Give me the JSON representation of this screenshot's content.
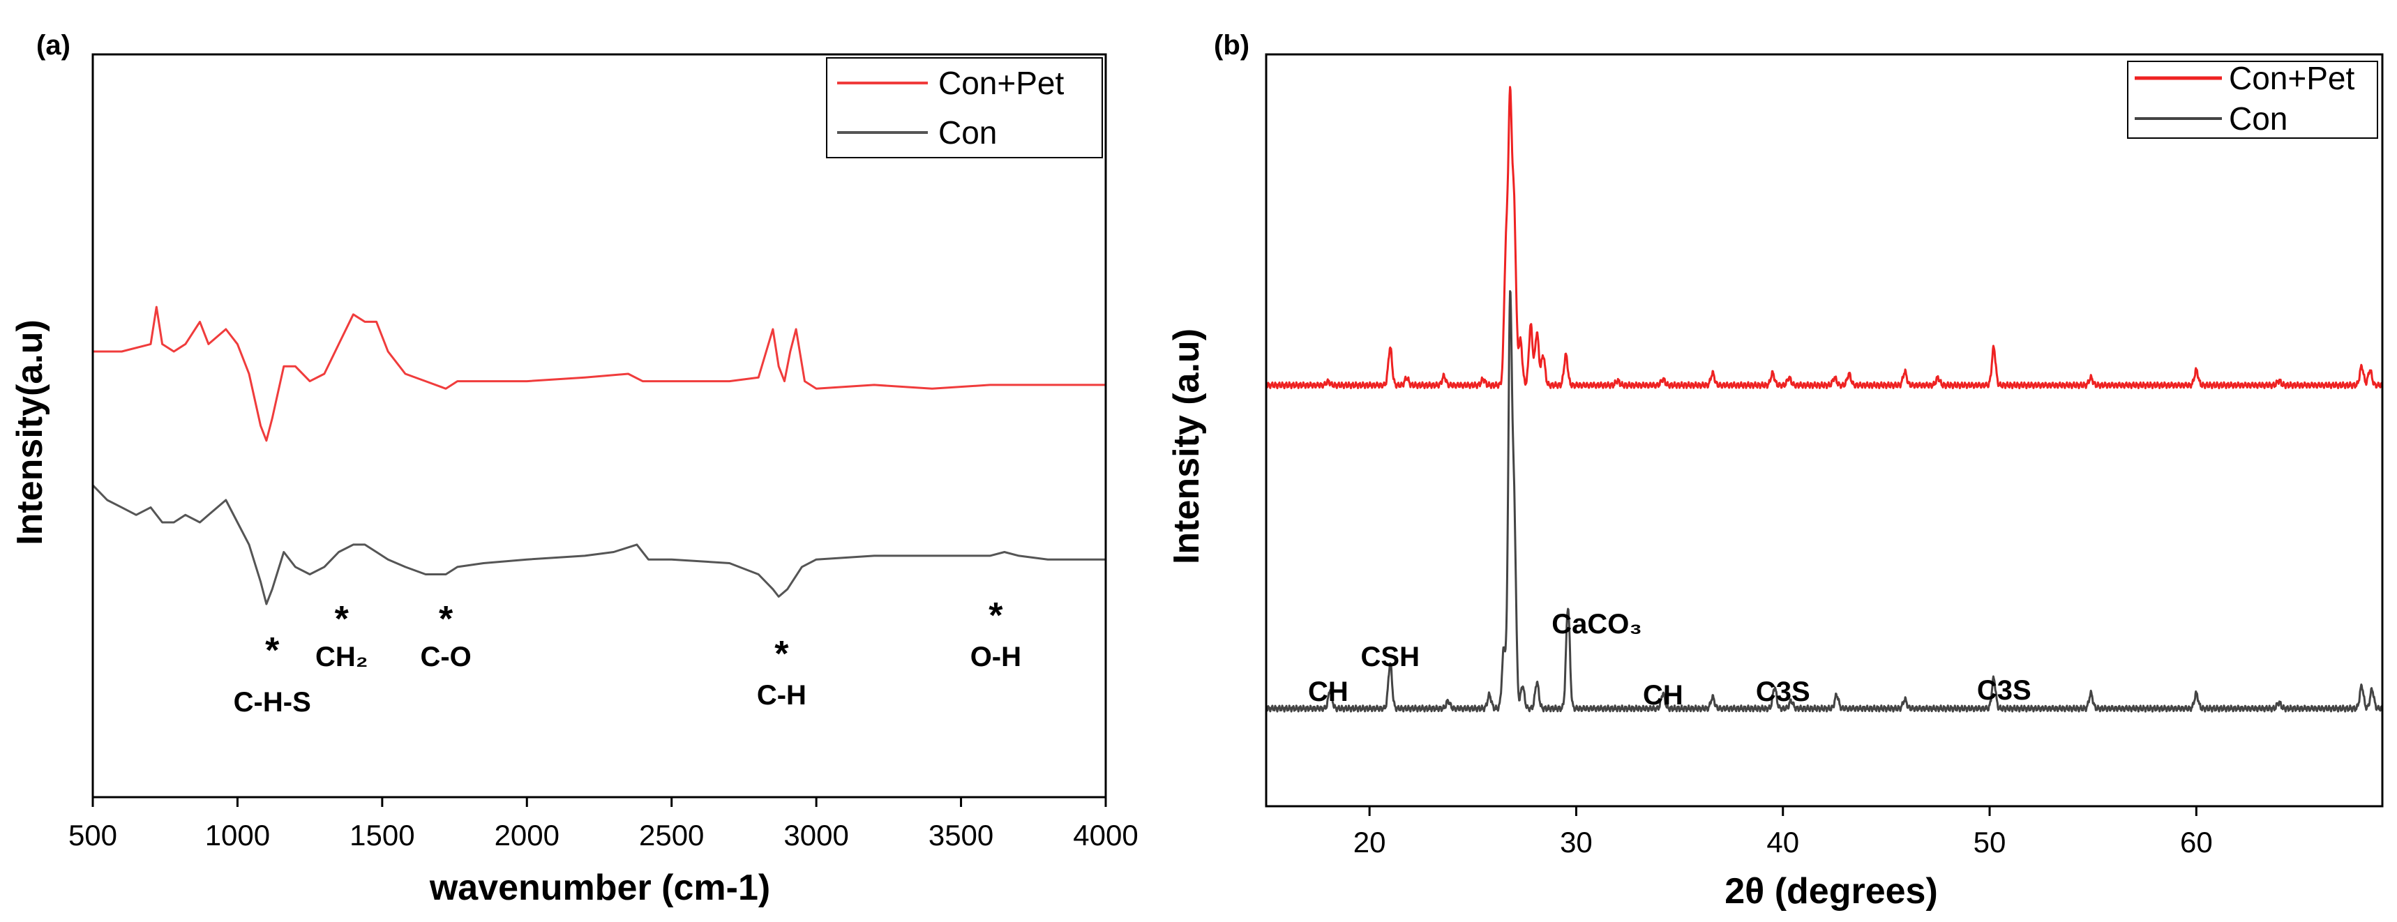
{
  "chart_data": [
    {
      "type": "line",
      "panel_label": "(a)",
      "title": "",
      "xlabel": "wavenumber (cm-1)",
      "ylabel": "Intensity(a.u)",
      "xlim": [
        500,
        4000
      ],
      "xticks": [
        500,
        1000,
        1500,
        2000,
        2500,
        3000,
        3500,
        4000
      ],
      "y_ticks_shown": false,
      "legend": "top-right",
      "colors": {
        "Con+Pet": "#f03c3c",
        "Con": "#555555"
      },
      "series": [
        {
          "name": "Con+Pet",
          "x": [
            500,
            600,
            700,
            720,
            740,
            780,
            820,
            870,
            900,
            960,
            1000,
            1040,
            1080,
            1100,
            1120,
            1160,
            1200,
            1250,
            1300,
            1350,
            1400,
            1440,
            1480,
            1520,
            1580,
            1650,
            1720,
            1760,
            1850,
            2000,
            2200,
            2350,
            2400,
            2500,
            2700,
            2800,
            2850,
            2870,
            2890,
            2910,
            2930,
            2960,
            3000,
            3200,
            3400,
            3600,
            3800,
            4000
          ],
          "values": [
            0.6,
            0.6,
            0.61,
            0.66,
            0.61,
            0.6,
            0.61,
            0.64,
            0.61,
            0.63,
            0.61,
            0.57,
            0.5,
            0.48,
            0.51,
            0.58,
            0.58,
            0.56,
            0.57,
            0.61,
            0.65,
            0.64,
            0.64,
            0.6,
            0.57,
            0.56,
            0.55,
            0.56,
            0.56,
            0.56,
            0.565,
            0.57,
            0.56,
            0.56,
            0.56,
            0.565,
            0.63,
            0.58,
            0.56,
            0.6,
            0.63,
            0.56,
            0.55,
            0.555,
            0.55,
            0.555,
            0.555,
            0.555
          ]
        },
        {
          "name": "Con",
          "x": [
            500,
            550,
            600,
            650,
            700,
            740,
            780,
            820,
            870,
            900,
            960,
            1000,
            1040,
            1080,
            1100,
            1120,
            1160,
            1200,
            1250,
            1300,
            1350,
            1400,
            1440,
            1480,
            1520,
            1580,
            1650,
            1720,
            1760,
            1850,
            2000,
            2200,
            2300,
            2380,
            2420,
            2500,
            2700,
            2800,
            2850,
            2870,
            2900,
            2950,
            3000,
            3200,
            3400,
            3600,
            3650,
            3700,
            3800,
            4000
          ],
          "values": [
            0.42,
            0.4,
            0.39,
            0.38,
            0.39,
            0.37,
            0.37,
            0.38,
            0.37,
            0.38,
            0.4,
            0.37,
            0.34,
            0.29,
            0.26,
            0.28,
            0.33,
            0.31,
            0.3,
            0.31,
            0.33,
            0.34,
            0.34,
            0.33,
            0.32,
            0.31,
            0.3,
            0.3,
            0.31,
            0.315,
            0.32,
            0.325,
            0.33,
            0.34,
            0.32,
            0.32,
            0.315,
            0.3,
            0.28,
            0.27,
            0.28,
            0.31,
            0.32,
            0.325,
            0.325,
            0.325,
            0.33,
            0.325,
            0.32,
            0.32
          ]
        }
      ],
      "annotations": [
        {
          "text": "C-H-S",
          "x": 1120,
          "star": "*"
        },
        {
          "text": "CH₂",
          "x": 1360,
          "star": "*"
        },
        {
          "text": "C-O",
          "x": 1720,
          "star": "*"
        },
        {
          "text": "C-H",
          "x": 2880,
          "star": "*"
        },
        {
          "text": "O-H",
          "x": 3620,
          "star": "*"
        }
      ]
    },
    {
      "type": "line",
      "panel_label": "(b)",
      "title": "",
      "xlabel": "2θ (degrees)",
      "ylabel": "Intensity (a.u)",
      "xlim": [
        15,
        69
      ],
      "xticks": [
        20,
        30,
        40,
        50,
        60
      ],
      "y_ticks_shown": false,
      "legend": "top-right",
      "colors": {
        "Con+Pet": "#ee2222",
        "Con": "#444444"
      },
      "series": [
        {
          "name": "Con+Pet",
          "baseline": 0.56,
          "peaks": [
            [
              18.0,
              0.005
            ],
            [
              21.0,
              0.05
            ],
            [
              21.8,
              0.01
            ],
            [
              23.6,
              0.012
            ],
            [
              25.5,
              0.008
            ],
            [
              26.6,
              0.17
            ],
            [
              26.8,
              0.36
            ],
            [
              27.0,
              0.22
            ],
            [
              27.3,
              0.06
            ],
            [
              27.8,
              0.08
            ],
            [
              28.1,
              0.07
            ],
            [
              28.4,
              0.04
            ],
            [
              29.5,
              0.04
            ],
            [
              32.0,
              0.006
            ],
            [
              34.2,
              0.008
            ],
            [
              36.6,
              0.016
            ],
            [
              39.5,
              0.016
            ],
            [
              40.3,
              0.01
            ],
            [
              42.5,
              0.01
            ],
            [
              43.2,
              0.015
            ],
            [
              45.9,
              0.018
            ],
            [
              47.5,
              0.01
            ],
            [
              50.2,
              0.05
            ],
            [
              54.9,
              0.01
            ],
            [
              60.0,
              0.02
            ],
            [
              64.0,
              0.006
            ],
            [
              68.0,
              0.025
            ],
            [
              68.4,
              0.02
            ]
          ]
        },
        {
          "name": "Con",
          "baseline": 0.13,
          "peaks": [
            [
              18.1,
              0.025
            ],
            [
              21.0,
              0.06
            ],
            [
              23.8,
              0.01
            ],
            [
              25.8,
              0.018
            ],
            [
              26.5,
              0.08
            ],
            [
              26.8,
              0.53
            ],
            [
              27.0,
              0.25
            ],
            [
              27.4,
              0.03
            ],
            [
              28.1,
              0.035
            ],
            [
              29.6,
              0.135
            ],
            [
              34.2,
              0.02
            ],
            [
              36.6,
              0.015
            ],
            [
              39.6,
              0.028
            ],
            [
              40.4,
              0.01
            ],
            [
              42.6,
              0.018
            ],
            [
              45.9,
              0.012
            ],
            [
              50.2,
              0.04
            ],
            [
              54.9,
              0.02
            ],
            [
              60.0,
              0.02
            ],
            [
              64.0,
              0.008
            ],
            [
              68.0,
              0.03
            ],
            [
              68.5,
              0.025
            ]
          ]
        }
      ],
      "annotations": [
        {
          "text": "CH",
          "x": 18.0
        },
        {
          "text": "CSH",
          "x": 21.0
        },
        {
          "text": "CaCO₃",
          "x": 31.0
        },
        {
          "text": "CH",
          "x": 34.2
        },
        {
          "text": "C3S",
          "x": 40.0
        },
        {
          "text": "C3S",
          "x": 50.7
        }
      ]
    }
  ]
}
